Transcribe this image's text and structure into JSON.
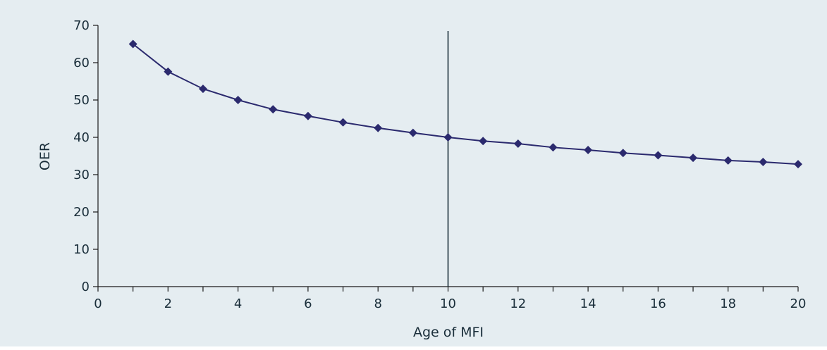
{
  "colors": {
    "background": "#e5edf1",
    "series": "#2b2a6e",
    "axis": "#1a1a1a",
    "reference_line": "#1a2e3a",
    "text": "#1a2e3a"
  },
  "chart_data": {
    "type": "line",
    "title": "",
    "xlabel": "Age of MFI",
    "ylabel": "OER",
    "xlim": [
      0,
      20
    ],
    "ylim": [
      0,
      70
    ],
    "xticks": [
      0,
      2,
      4,
      6,
      8,
      10,
      12,
      14,
      16,
      18,
      20
    ],
    "yticks": [
      0,
      10,
      20,
      30,
      40,
      50,
      60,
      70
    ],
    "grid": false,
    "legend": "none",
    "marker": "diamond",
    "reference_line_x": 10,
    "series": [
      {
        "x": [
          1,
          2,
          3,
          4,
          5,
          6,
          7,
          8,
          9,
          10,
          11,
          12,
          13,
          14,
          15,
          16,
          17,
          18,
          19,
          20
        ],
        "y": [
          65,
          57.6,
          53,
          50,
          47.5,
          45.7,
          44,
          42.5,
          41.2,
          40,
          39,
          38.3,
          37.3,
          36.6,
          35.8,
          35.2,
          34.5,
          33.8,
          33.4,
          32.8
        ]
      }
    ]
  }
}
